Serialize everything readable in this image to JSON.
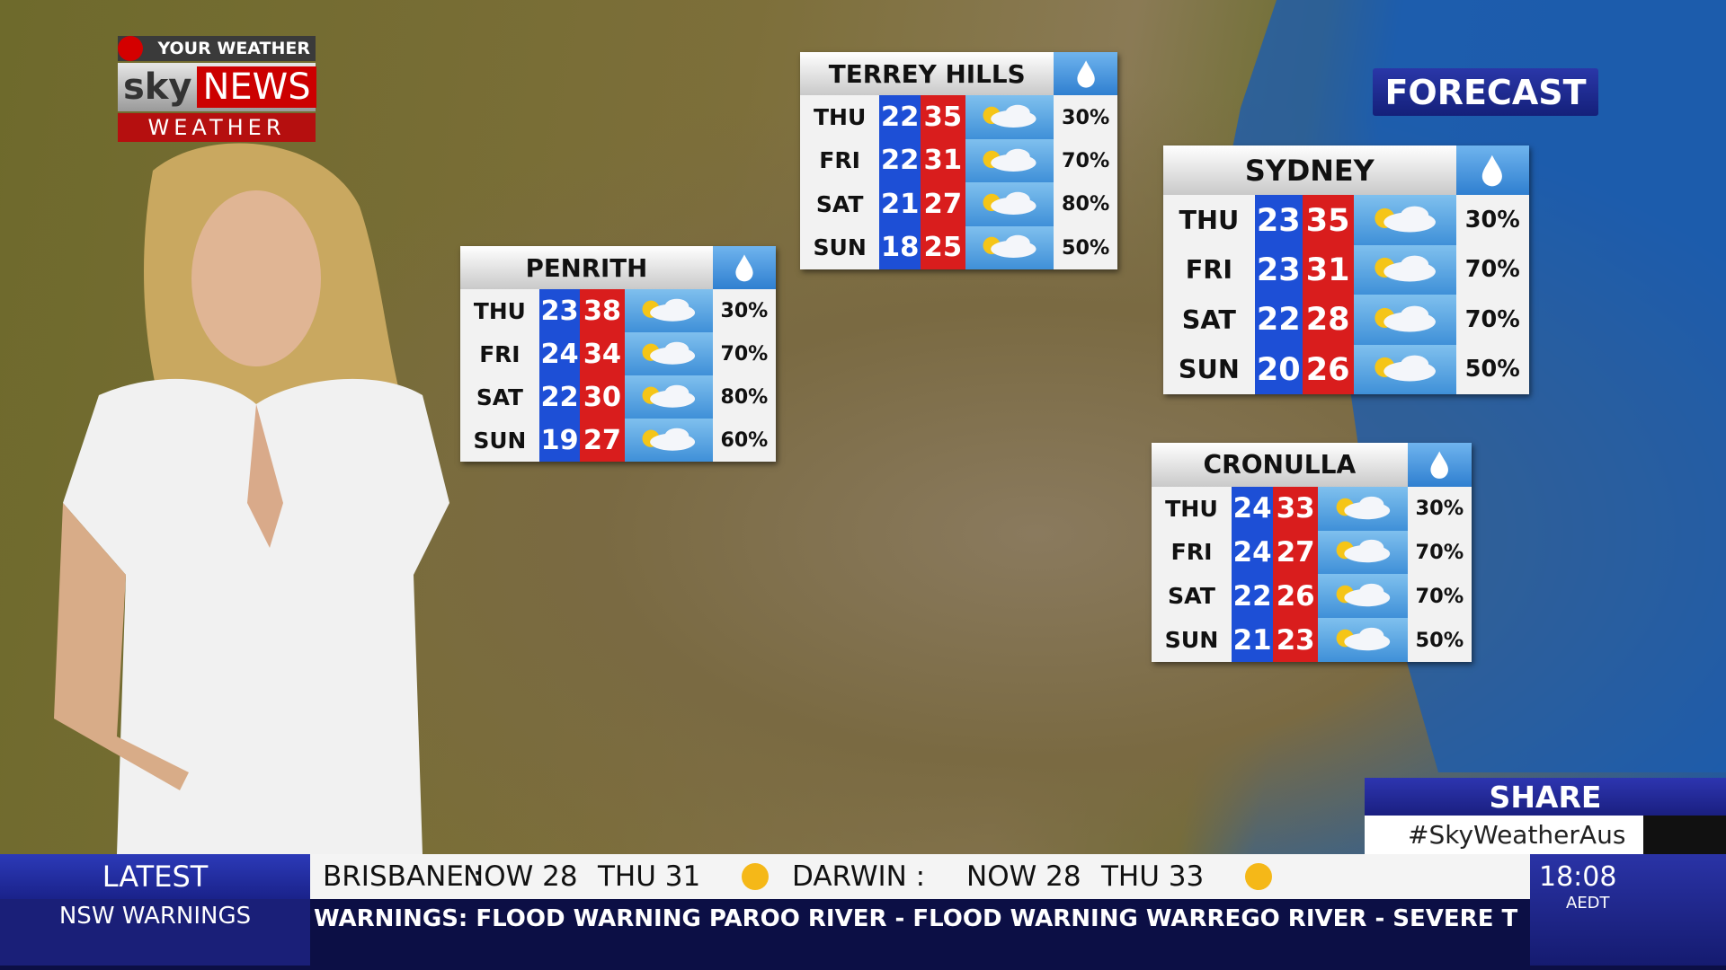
{
  "logo": {
    "tag": "YOUR WEATHER",
    "sky": "sky",
    "news": "NEWS",
    "weather": "WEATHER"
  },
  "forecast_label": "FORECAST",
  "panels": [
    {
      "city": "TERREY HILLS",
      "rows": [
        {
          "day": "THU",
          "min": 22,
          "max": 35,
          "rain": "30%"
        },
        {
          "day": "FRI",
          "min": 22,
          "max": 31,
          "rain": "70%"
        },
        {
          "day": "SAT",
          "min": 21,
          "max": 27,
          "rain": "80%"
        },
        {
          "day": "SUN",
          "min": 18,
          "max": 25,
          "rain": "50%"
        }
      ]
    },
    {
      "city": "PENRITH",
      "rows": [
        {
          "day": "THU",
          "min": 23,
          "max": 38,
          "rain": "30%"
        },
        {
          "day": "FRI",
          "min": 24,
          "max": 34,
          "rain": "70%"
        },
        {
          "day": "SAT",
          "min": 22,
          "max": 30,
          "rain": "80%"
        },
        {
          "day": "SUN",
          "min": 19,
          "max": 27,
          "rain": "60%"
        }
      ]
    },
    {
      "city": "SYDNEY",
      "rows": [
        {
          "day": "THU",
          "min": 23,
          "max": 35,
          "rain": "30%"
        },
        {
          "day": "FRI",
          "min": 23,
          "max": 31,
          "rain": "70%"
        },
        {
          "day": "SAT",
          "min": 22,
          "max": 28,
          "rain": "70%"
        },
        {
          "day": "SUN",
          "min": 20,
          "max": 26,
          "rain": "50%"
        }
      ]
    },
    {
      "city": "CRONULLA",
      "rows": [
        {
          "day": "THU",
          "min": 24,
          "max": 33,
          "rain": "30%"
        },
        {
          "day": "FRI",
          "min": 24,
          "max": 27,
          "rain": "70%"
        },
        {
          "day": "SAT",
          "min": 22,
          "max": 26,
          "rain": "70%"
        },
        {
          "day": "SUN",
          "min": 21,
          "max": 23,
          "rain": "50%"
        }
      ]
    }
  ],
  "share": {
    "title": "SHARE",
    "tag": "#SkyWeatherAus"
  },
  "ticker": {
    "latest": "LATEST",
    "section": "NSW WARNINGS",
    "items": [
      {
        "place": "BRISBANE :",
        "now": "NOW 28",
        "day": "THU 31"
      },
      {
        "place": "DARWIN :",
        "now": "NOW 28",
        "day": "THU 33"
      }
    ],
    "crawl": "WARNINGS: FLOOD WARNING PAROO RIVER - FLOOD WARNING WARREGO RIVER - SEVERE T",
    "time": "18:08",
    "zone": "AEDT"
  }
}
